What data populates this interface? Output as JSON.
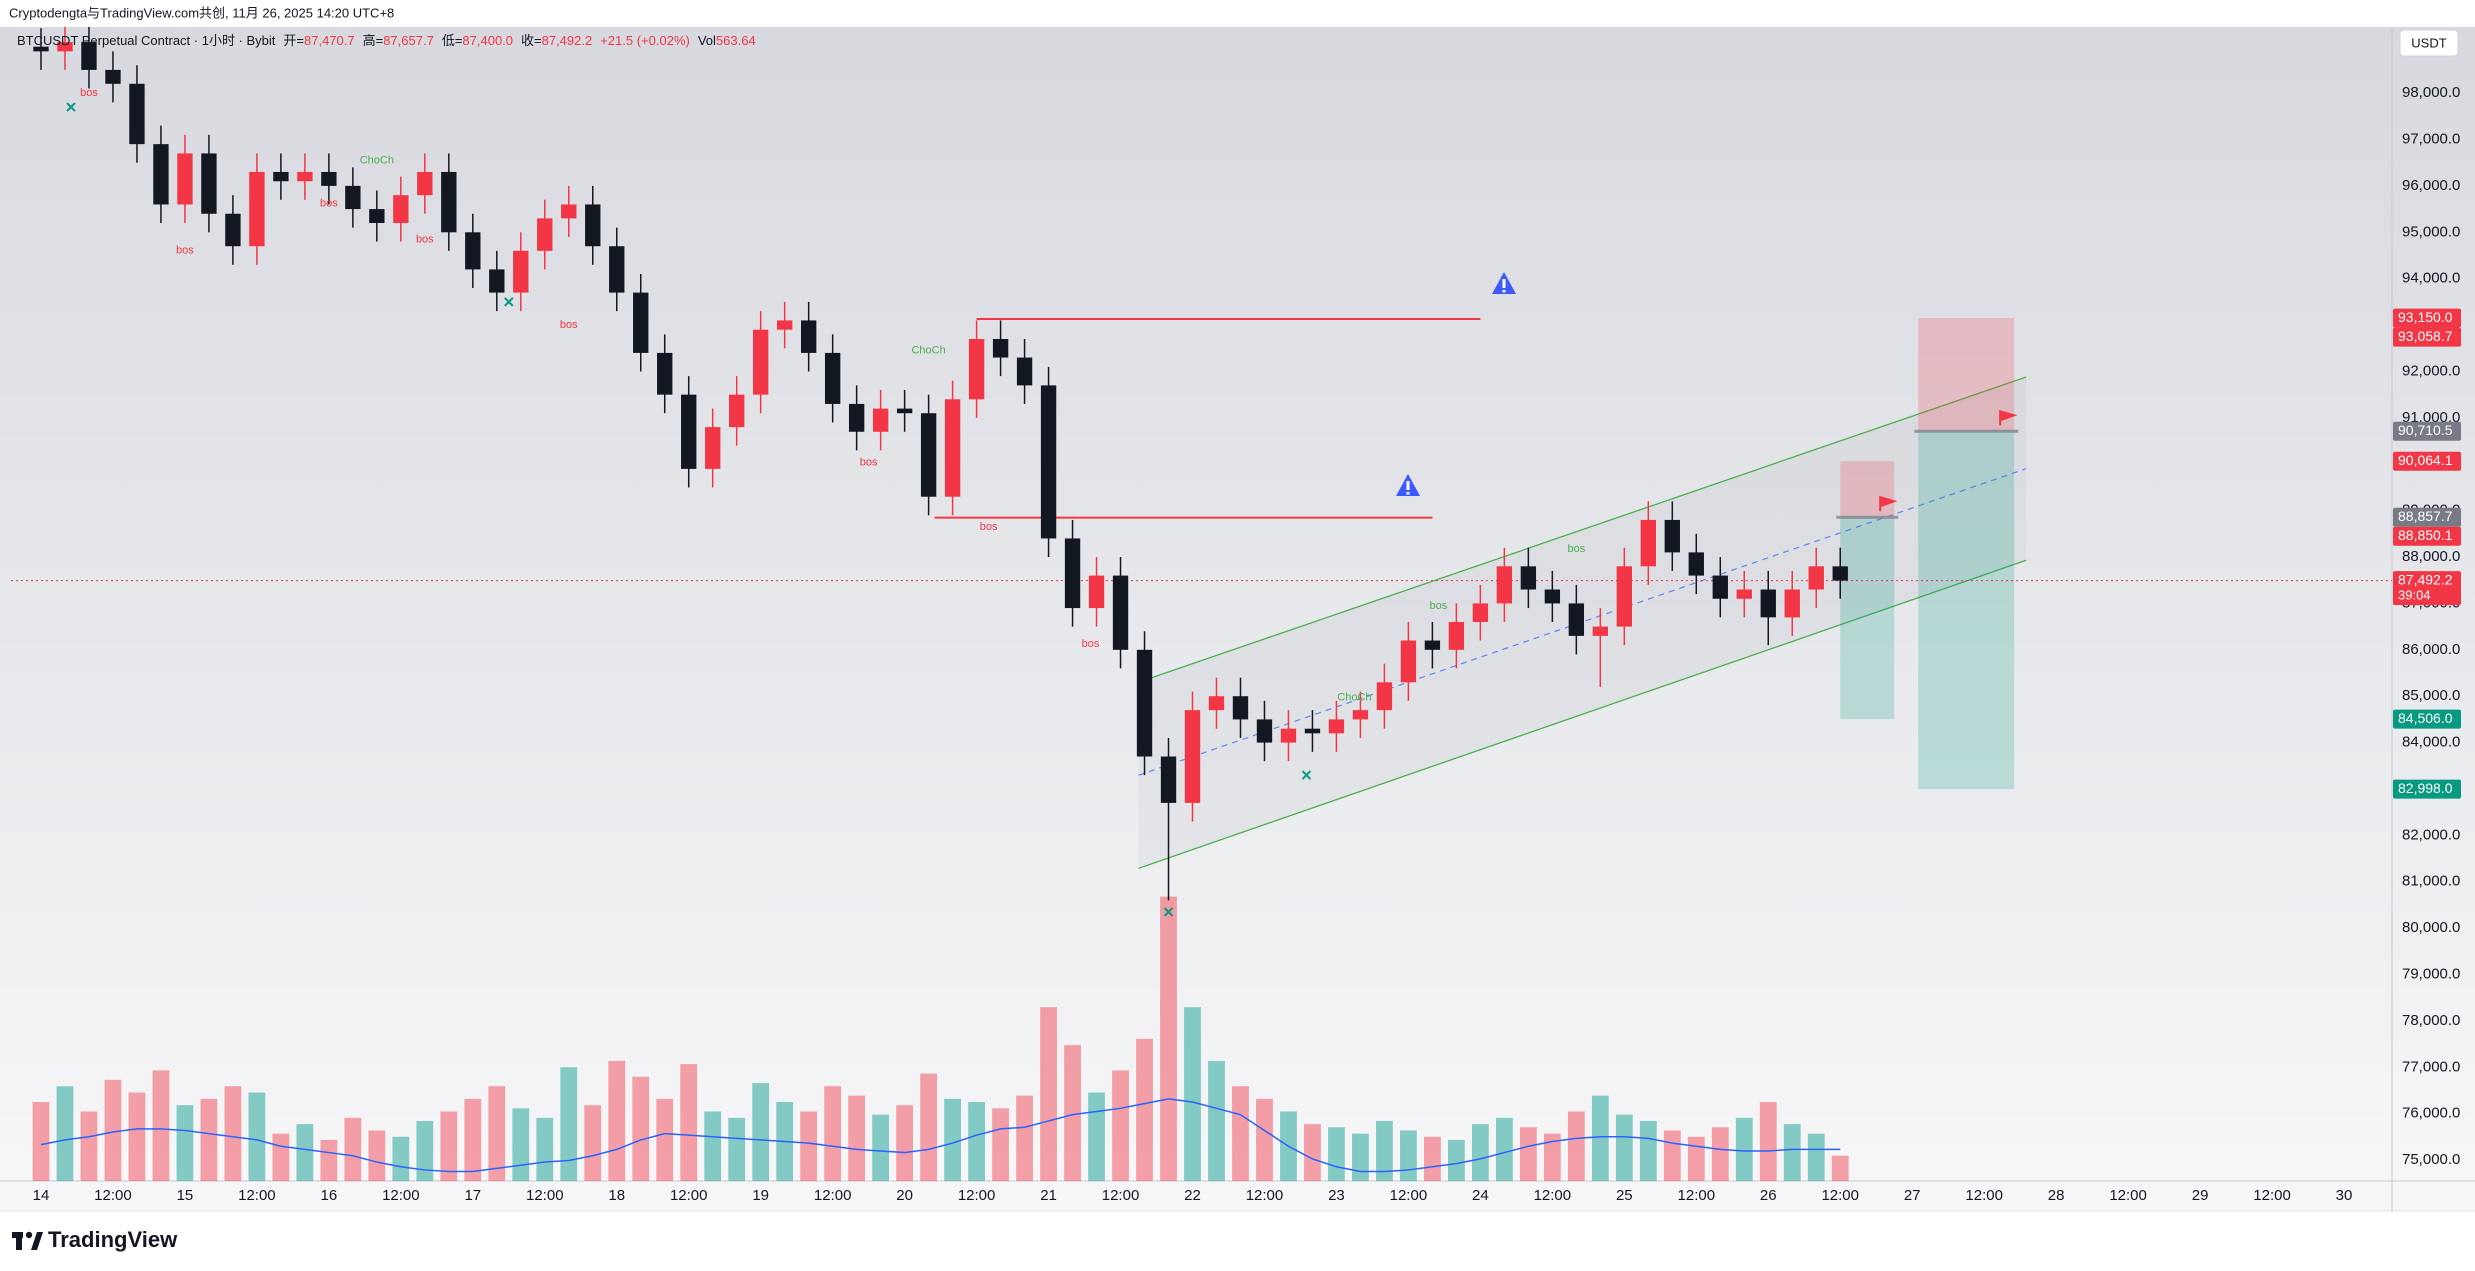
{
  "header": {
    "title": "Cryptodengta与TradingView.com共创, 11月 26, 2025 14:20 UTC+8",
    "currency_button": "USDT"
  },
  "legend": [
    {
      "text": "BTCUSDT Perpetual Contract · 1小时 · Bybit",
      "color": "#131722"
    },
    {
      "text": "开=",
      "color": "#131722"
    },
    {
      "text": "87,470.7",
      "color": "#f23645"
    },
    {
      "text": "高=",
      "color": "#131722"
    },
    {
      "text": "87,657.7",
      "color": "#f23645"
    },
    {
      "text": "低=",
      "color": "#131722"
    },
    {
      "text": "87,400.0",
      "color": "#f23645"
    },
    {
      "text": "收=",
      "color": "#131722"
    },
    {
      "text": "87,492.2",
      "color": "#f23645"
    },
    {
      "text": "+21.5 (+0.02%)",
      "color": "#f23645"
    },
    {
      "text": "Vol",
      "color": "#131722"
    },
    {
      "text": "563.64",
      "color": "#f23645"
    }
  ],
  "chart_data": {
    "type": "candlestick",
    "x": [
      0,
      4,
      8,
      12,
      16,
      20,
      24,
      28,
      32,
      36,
      40,
      44,
      48,
      52,
      56,
      60,
      64,
      68,
      72,
      76,
      80,
      84,
      88,
      92,
      96,
      100,
      104,
      108,
      112,
      116,
      120,
      124,
      128,
      132,
      136,
      140,
      144,
      148,
      152,
      156,
      160,
      164,
      168,
      172,
      176,
      180,
      184,
      188,
      192,
      196,
      200,
      204,
      208,
      212,
      216,
      220,
      224,
      228,
      232,
      236,
      240,
      244,
      248,
      252,
      256,
      260,
      264,
      268,
      272,
      276,
      280,
      284,
      288,
      292,
      296,
      300
    ],
    "open": [
      99000,
      98900,
      99100,
      98500,
      98200,
      96900,
      95600,
      96700,
      95400,
      94700,
      96300,
      96100,
      96300,
      96000,
      95500,
      95200,
      95800,
      96300,
      95000,
      94200,
      93700,
      94600,
      95300,
      95600,
      94700,
      93700,
      92400,
      91500,
      89900,
      90800,
      91500,
      92900,
      93100,
      92400,
      91300,
      90700,
      91200,
      91100,
      89300,
      91400,
      92700,
      92300,
      91700,
      88400,
      86900,
      87600,
      86000,
      83700,
      82700,
      84700,
      85000,
      84500,
      84000,
      84300,
      84200,
      84500,
      84700,
      85300,
      86200,
      86000,
      86600,
      87000,
      87800,
      87300,
      87000,
      86300,
      86500,
      87800,
      88800,
      88100,
      87600,
      87100,
      87300,
      86700,
      87300,
      87800
    ],
    "high": [
      99400,
      99500,
      99500,
      98900,
      98600,
      97300,
      97100,
      97100,
      95800,
      96700,
      96700,
      96700,
      96700,
      96400,
      95900,
      96200,
      96700,
      96700,
      95400,
      94600,
      95000,
      95700,
      96000,
      96000,
      95100,
      94100,
      92800,
      91900,
      91200,
      91900,
      93300,
      93500,
      93500,
      92800,
      91700,
      91600,
      91600,
      91500,
      91800,
      93100,
      93100,
      92700,
      92100,
      88800,
      88000,
      88000,
      86400,
      84100,
      85100,
      85400,
      85400,
      84900,
      84700,
      84700,
      84900,
      85100,
      85700,
      86600,
      86600,
      87000,
      87400,
      88200,
      88200,
      87700,
      87400,
      86900,
      88200,
      89200,
      89200,
      88500,
      88000,
      87700,
      87700,
      87700,
      88200,
      88200
    ],
    "low": [
      98500,
      98500,
      98100,
      97800,
      96500,
      95200,
      95200,
      95000,
      94300,
      94300,
      95700,
      95700,
      95600,
      95100,
      94800,
      94800,
      95400,
      94600,
      93800,
      93300,
      93300,
      94200,
      94900,
      94300,
      93300,
      92000,
      91100,
      89500,
      89500,
      90400,
      91100,
      92500,
      92000,
      90900,
      90300,
      90300,
      90700,
      88900,
      88900,
      91000,
      91900,
      91300,
      88000,
      86500,
      86500,
      85600,
      83300,
      80600,
      82300,
      84300,
      84100,
      83600,
      83600,
      83800,
      83800,
      84100,
      84300,
      84900,
      85600,
      85600,
      86200,
      86600,
      86900,
      86600,
      85900,
      85200,
      86100,
      87400,
      87700,
      87200,
      86700,
      86700,
      86100,
      86300,
      86900,
      87100
    ],
    "close": [
      98900,
      99100,
      98500,
      98200,
      96900,
      95600,
      96700,
      95400,
      94700,
      96300,
      96100,
      96300,
      96000,
      95500,
      95200,
      95800,
      96300,
      95000,
      94200,
      93700,
      94600,
      95300,
      95600,
      94700,
      93700,
      92400,
      91500,
      89900,
      90800,
      91500,
      92900,
      93100,
      92400,
      91300,
      90700,
      91200,
      91100,
      89300,
      91400,
      92700,
      92300,
      91700,
      88400,
      86900,
      87600,
      86000,
      83700,
      82700,
      84700,
      85000,
      84500,
      84000,
      84300,
      84200,
      84500,
      84700,
      85300,
      86200,
      86000,
      86600,
      87000,
      87800,
      87300,
      87000,
      86300,
      86500,
      87800,
      88800,
      88100,
      87600,
      87100,
      87300,
      86700,
      87300,
      87800,
      87492.2
    ],
    "up_color": "#f23645",
    "down_color": "#131722",
    "volume": {
      "values": [
        2500,
        3000,
        2200,
        3200,
        2800,
        3500,
        2400,
        2600,
        3000,
        2800,
        1500,
        1800,
        1300,
        2000,
        1600,
        1400,
        1900,
        2200,
        2600,
        3000,
        2300,
        2000,
        3600,
        2400,
        3800,
        3300,
        2600,
        3700,
        2200,
        2000,
        3100,
        2500,
        2200,
        3000,
        2700,
        2100,
        2400,
        3400,
        2600,
        2500,
        2300,
        2700,
        5500,
        4300,
        2800,
        3500,
        4500,
        9000,
        5500,
        3800,
        3000,
        2600,
        2200,
        1800,
        1700,
        1500,
        1900,
        1600,
        1400,
        1300,
        1800,
        2000,
        1700,
        1500,
        2200,
        2700,
        2100,
        1900,
        1600,
        1400,
        1700,
        2000,
        2500,
        1800,
        1500,
        800
      ],
      "ma": [
        1150,
        1300,
        1400,
        1550,
        1650,
        1650,
        1600,
        1500,
        1400,
        1300,
        1100,
        1000,
        900,
        800,
        600,
        450,
        350,
        300,
        300,
        400,
        500,
        600,
        650,
        800,
        1000,
        1300,
        1500,
        1450,
        1400,
        1350,
        1300,
        1250,
        1200,
        1100,
        1000,
        950,
        900,
        1000,
        1200,
        1450,
        1650,
        1700,
        1900,
        2100,
        2200,
        2300,
        2450,
        2600,
        2500,
        2300,
        2100,
        1600,
        1100,
        700,
        450,
        300,
        300,
        350,
        450,
        550,
        700,
        900,
        1100,
        1250,
        1350,
        1400,
        1400,
        1350,
        1200,
        1100,
        1000,
        950,
        950,
        1000,
        1000,
        1000
      ],
      "vlim": [
        0,
        10000
      ],
      "up_color": "rgba(38,166,154,0.55)",
      "down_color": "rgba(242,54,69,0.45)",
      "ma_color": "#2962ff"
    },
    "xlim": [
      -5,
      392
    ],
    "ylim": [
      74550,
      99425
    ],
    "xticks": [
      {
        "value": 0,
        "label": "14"
      },
      {
        "value": 12,
        "label": "12:00"
      },
      {
        "value": 24,
        "label": "15"
      },
      {
        "value": 36,
        "label": "12:00"
      },
      {
        "value": 48,
        "label": "16"
      },
      {
        "value": 60,
        "label": "12:00"
      },
      {
        "value": 72,
        "label": "17"
      },
      {
        "value": 84,
        "label": "12:00"
      },
      {
        "value": 96,
        "label": "18"
      },
      {
        "value": 108,
        "label": "12:00"
      },
      {
        "value": 120,
        "label": "19"
      },
      {
        "value": 132,
        "label": "12:00"
      },
      {
        "value": 144,
        "label": "20"
      },
      {
        "value": 156,
        "label": "12:00"
      },
      {
        "value": 168,
        "label": "21"
      },
      {
        "value": 180,
        "label": "12:00"
      },
      {
        "value": 192,
        "label": "22"
      },
      {
        "value": 204,
        "label": "12:00"
      },
      {
        "value": 216,
        "label": "23"
      },
      {
        "value": 228,
        "label": "12:00"
      },
      {
        "value": 240,
        "label": "24"
      },
      {
        "value": 252,
        "label": "12:00"
      },
      {
        "value": 264,
        "label": "25"
      },
      {
        "value": 276,
        "label": "12:00"
      },
      {
        "value": 288,
        "label": "26"
      },
      {
        "value": 300,
        "label": "12:00"
      },
      {
        "value": 312,
        "label": "27"
      },
      {
        "value": 324,
        "label": "12:00"
      },
      {
        "value": 336,
        "label": "28"
      },
      {
        "value": 348,
        "label": "12:00"
      },
      {
        "value": 360,
        "label": "29"
      },
      {
        "value": 372,
        "label": "12:00"
      },
      {
        "value": 384,
        "label": "30"
      }
    ],
    "yticks": [
      {
        "value": 75000,
        "label": "75,000.0"
      },
      {
        "value": 76000,
        "label": "76,000.0"
      },
      {
        "value": 77000,
        "label": "77,000.0"
      },
      {
        "value": 78000,
        "label": "78,000.0"
      },
      {
        "value": 79000,
        "label": "79,000.0"
      },
      {
        "value": 80000,
        "label": "80,000.0"
      },
      {
        "value": 81000,
        "label": "81,000.0"
      },
      {
        "value": 82000,
        "label": "82,000.0"
      },
      {
        "value": 83000,
        "label": "83,000.0"
      },
      {
        "value": 84000,
        "label": "84,000.0"
      },
      {
        "value": 85000,
        "label": "85,000.0"
      },
      {
        "value": 86000,
        "label": "86,000.0"
      },
      {
        "value": 87000,
        "label": "87,000.0"
      },
      {
        "value": 88000,
        "label": "88,000.0"
      },
      {
        "value": 89000,
        "label": "89,000.0"
      },
      {
        "value": 90000,
        "label": "90,000.0"
      },
      {
        "value": 91000,
        "label": "91,000.0"
      },
      {
        "value": 92000,
        "label": "92,000.0"
      },
      {
        "value": 93000,
        "label": "93,000.0"
      },
      {
        "value": 94000,
        "label": "94,000.0"
      },
      {
        "value": 95000,
        "label": "95,000.0"
      },
      {
        "value": 96000,
        "label": "96,000.0"
      },
      {
        "value": 97000,
        "label": "97,000.0"
      },
      {
        "value": 98000,
        "label": "98,000.0"
      }
    ],
    "grid": false,
    "price_labels": [
      {
        "value": 93150,
        "label": "93,150.0",
        "color": "#f23645"
      },
      {
        "value": 93058.7,
        "label": "93,058.7",
        "color": "#f23645"
      },
      {
        "value": 90710.5,
        "label": "90,710.5",
        "color": "#787b86"
      },
      {
        "value": 90064.1,
        "label": "90,064.1",
        "color": "#f23645"
      },
      {
        "value": 88857.7,
        "label": "88,857.7",
        "color": "#787b86"
      },
      {
        "value": 88850.1,
        "label": "88,850.1",
        "color": "#f23645"
      },
      {
        "value": 87492.2,
        "label": "87,492.2",
        "color": "#f23645",
        "countdown": "39:04"
      },
      {
        "value": 84506,
        "label": "84,506.0",
        "color": "#089981"
      },
      {
        "value": 82998,
        "label": "82,998.0",
        "color": "#089981"
      }
    ],
    "positions": [
      {
        "x": [
          300,
          309
        ],
        "stop": 90064.1,
        "entry": 88857.7,
        "target": 84506
      },
      {
        "x": [
          313,
          329
        ],
        "stop": 93150,
        "entry": 90710.5,
        "target": 82998
      }
    ],
    "levels": [
      {
        "x": [
          156,
          240
        ],
        "price": 93130,
        "color": "#f23645"
      },
      {
        "x": [
          149,
          232
        ],
        "price": 88850,
        "color": "#f23645"
      }
    ],
    "channel": {
      "x": [
        183,
        331
      ],
      "upper": [
        85300,
        91880
      ],
      "lower": [
        81290,
        87930
      ],
      "color": "#4caf50"
    },
    "annotations": [
      {
        "text": "bos",
        "x": 8,
        "price": 98000,
        "color": "#f23645"
      },
      {
        "text": "bos",
        "x": 24,
        "price": 94600,
        "color": "#f23645"
      },
      {
        "text": "bos",
        "x": 48,
        "price": 95620,
        "color": "#f23645"
      },
      {
        "text": "ChoCh",
        "x": 56,
        "price": 96540,
        "color": "#4caf50"
      },
      {
        "text": "bos",
        "x": 64,
        "price": 94840,
        "color": "#f23645"
      },
      {
        "text": "bos",
        "x": 88,
        "price": 93000,
        "color": "#f23645"
      },
      {
        "text": "bos",
        "x": 138,
        "price": 90040,
        "color": "#f23645"
      },
      {
        "text": "ChoCh",
        "x": 148,
        "price": 92450,
        "color": "#4caf50"
      },
      {
        "text": "bos",
        "x": 158,
        "price": 88640,
        "color": "#f23645"
      },
      {
        "text": "bos",
        "x": 175,
        "price": 86120,
        "color": "#f23645"
      },
      {
        "text": "ChoCh",
        "x": 219,
        "price": 84970,
        "color": "#4caf50"
      },
      {
        "text": "bos",
        "x": 233,
        "price": 86940,
        "color": "#4caf50"
      },
      {
        "text": "bos",
        "x": 256,
        "price": 88170,
        "color": "#4caf50"
      }
    ],
    "markers": [
      {
        "x": 5,
        "price": 97700,
        "color": "#089981"
      },
      {
        "x": 78,
        "price": 93500,
        "color": "#089981"
      },
      {
        "x": 188,
        "price": 80350,
        "color": "#089981"
      },
      {
        "x": 211,
        "price": 83300,
        "color": "#089981"
      }
    ]
  },
  "footer": {
    "brand": "TradingView"
  }
}
